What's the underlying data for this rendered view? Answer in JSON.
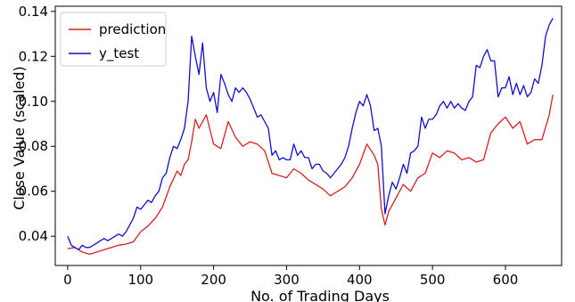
{
  "chart_data": {
    "type": "line",
    "title": "",
    "xlabel": "No. of Trading Days",
    "ylabel": "Close Value (scaled)",
    "xlim": [
      -17,
      677
    ],
    "ylim": [
      0.027,
      0.1423
    ],
    "xticks": [
      0,
      100,
      200,
      300,
      400,
      500,
      600
    ],
    "xtick_labels": [
      "0",
      "100",
      "200",
      "300",
      "400",
      "500",
      "600"
    ],
    "yticks": [
      0.04,
      0.06,
      0.08,
      0.1,
      0.12,
      0.14
    ],
    "ytick_labels": [
      "0.04",
      "0.06",
      "0.08",
      "0.10",
      "0.12",
      "0.14"
    ],
    "grid": false,
    "legend": {
      "placement": "top-left"
    },
    "series": [
      {
        "name": "prediction",
        "color": "#d62020",
        "x": [
          0,
          10,
          20,
          30,
          40,
          50,
          60,
          70,
          80,
          90,
          100,
          110,
          120,
          130,
          140,
          150,
          155,
          160,
          165,
          170,
          175,
          180,
          190,
          200,
          210,
          220,
          230,
          240,
          250,
          260,
          270,
          280,
          290,
          300,
          310,
          320,
          330,
          340,
          350,
          360,
          370,
          380,
          390,
          400,
          410,
          420,
          425,
          430,
          435,
          440,
          450,
          460,
          470,
          480,
          490,
          500,
          510,
          520,
          530,
          540,
          550,
          560,
          570,
          580,
          590,
          600,
          610,
          620,
          630,
          640,
          650,
          660,
          665
        ],
        "values": [
          0.0345,
          0.035,
          0.033,
          0.032,
          0.033,
          0.034,
          0.035,
          0.036,
          0.0365,
          0.0375,
          0.042,
          0.0445,
          0.048,
          0.053,
          0.062,
          0.069,
          0.067,
          0.072,
          0.074,
          0.082,
          0.092,
          0.088,
          0.094,
          0.081,
          0.079,
          0.091,
          0.084,
          0.08,
          0.082,
          0.081,
          0.078,
          0.068,
          0.067,
          0.066,
          0.07,
          0.068,
          0.065,
          0.063,
          0.061,
          0.058,
          0.06,
          0.062,
          0.066,
          0.072,
          0.081,
          0.076,
          0.072,
          0.052,
          0.045,
          0.051,
          0.057,
          0.063,
          0.06,
          0.066,
          0.068,
          0.077,
          0.075,
          0.078,
          0.077,
          0.074,
          0.075,
          0.073,
          0.074,
          0.086,
          0.09,
          0.093,
          0.088,
          0.091,
          0.081,
          0.083,
          0.083,
          0.094,
          0.103
        ]
      },
      {
        "name": "y_test",
        "color": "#1010cc",
        "x": [
          0,
          5,
          10,
          15,
          20,
          25,
          30,
          35,
          40,
          45,
          50,
          55,
          60,
          65,
          70,
          75,
          80,
          85,
          90,
          95,
          100,
          105,
          110,
          115,
          120,
          125,
          130,
          135,
          140,
          145,
          150,
          155,
          160,
          165,
          170,
          175,
          180,
          185,
          190,
          195,
          200,
          205,
          210,
          215,
          220,
          225,
          230,
          235,
          240,
          245,
          250,
          255,
          260,
          265,
          270,
          275,
          280,
          285,
          290,
          295,
          300,
          305,
          310,
          315,
          320,
          325,
          330,
          335,
          340,
          345,
          350,
          355,
          360,
          365,
          370,
          375,
          380,
          385,
          390,
          395,
          400,
          405,
          410,
          415,
          420,
          425,
          430,
          435,
          440,
          445,
          450,
          455,
          460,
          465,
          470,
          475,
          480,
          485,
          490,
          495,
          500,
          505,
          510,
          515,
          520,
          525,
          530,
          535,
          540,
          545,
          550,
          555,
          560,
          565,
          570,
          575,
          580,
          585,
          590,
          595,
          600,
          605,
          610,
          615,
          620,
          625,
          630,
          635,
          640,
          645,
          650,
          655,
          660,
          665
        ],
        "values": [
          0.04,
          0.036,
          0.035,
          0.034,
          0.036,
          0.035,
          0.035,
          0.036,
          0.037,
          0.038,
          0.039,
          0.038,
          0.039,
          0.04,
          0.041,
          0.04,
          0.042,
          0.045,
          0.048,
          0.053,
          0.052,
          0.054,
          0.056,
          0.055,
          0.058,
          0.06,
          0.066,
          0.068,
          0.075,
          0.08,
          0.079,
          0.083,
          0.088,
          0.1,
          0.129,
          0.12,
          0.112,
          0.126,
          0.106,
          0.1,
          0.104,
          0.095,
          0.112,
          0.108,
          0.103,
          0.1,
          0.106,
          0.104,
          0.106,
          0.104,
          0.101,
          0.097,
          0.093,
          0.094,
          0.091,
          0.088,
          0.076,
          0.078,
          0.074,
          0.075,
          0.074,
          0.074,
          0.081,
          0.076,
          0.078,
          0.075,
          0.075,
          0.07,
          0.072,
          0.072,
          0.069,
          0.068,
          0.066,
          0.068,
          0.07,
          0.072,
          0.075,
          0.08,
          0.088,
          0.095,
          0.1,
          0.098,
          0.103,
          0.098,
          0.087,
          0.088,
          0.08,
          0.05,
          0.058,
          0.064,
          0.061,
          0.066,
          0.072,
          0.068,
          0.077,
          0.078,
          0.08,
          0.093,
          0.088,
          0.092,
          0.092,
          0.094,
          0.098,
          0.1,
          0.097,
          0.1,
          0.097,
          0.099,
          0.097,
          0.096,
          0.1,
          0.102,
          0.116,
          0.115,
          0.12,
          0.123,
          0.118,
          0.118,
          0.102,
          0.106,
          0.106,
          0.111,
          0.103,
          0.108,
          0.103,
          0.107,
          0.102,
          0.104,
          0.11,
          0.108,
          0.116,
          0.129,
          0.134,
          0.137
        ]
      }
    ]
  }
}
